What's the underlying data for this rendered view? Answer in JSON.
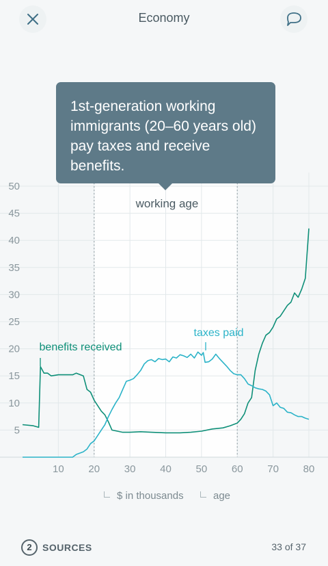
{
  "header": {
    "title": "Economy",
    "close_icon": "close-icon",
    "comment_icon": "speech-bubble-icon"
  },
  "tooltip": {
    "text": "1st-generation working immigrants (20–60 years old) pay taxes and receive benefits."
  },
  "colors": {
    "benefits": "#0e8f78",
    "taxes": "#2bb3c8",
    "tooltip_bg": "#5e7a88",
    "highlight_band": "#ffffff"
  },
  "chart_data": {
    "type": "line",
    "x_ticks": [
      10,
      20,
      30,
      40,
      50,
      60,
      70,
      80
    ],
    "y_ticks": [
      5,
      10,
      15,
      20,
      25,
      30,
      35,
      40,
      45,
      50
    ],
    "xlim": [
      0,
      80
    ],
    "ylim": [
      0,
      52
    ],
    "grid": true,
    "band": {
      "label": "working age",
      "from": 20,
      "to": 60
    },
    "series": [
      {
        "name": "benefits received",
        "color": "#0e8f78",
        "points": [
          [
            0,
            6
          ],
          [
            3,
            5.8
          ],
          [
            4,
            5.6
          ],
          [
            4.5,
            5.5
          ],
          [
            5,
            16.7
          ],
          [
            6,
            15.5
          ],
          [
            7,
            15.5
          ],
          [
            8,
            15.0
          ],
          [
            9,
            15.1
          ],
          [
            10,
            15.2
          ],
          [
            12,
            15.2
          ],
          [
            14,
            15.2
          ],
          [
            15,
            15.5
          ],
          [
            17,
            15.0
          ],
          [
            18,
            12.5
          ],
          [
            19,
            12
          ],
          [
            20,
            10.5
          ],
          [
            22,
            8.5
          ],
          [
            23,
            7.8
          ],
          [
            24,
            6.5
          ],
          [
            25,
            5
          ],
          [
            28,
            4.6
          ],
          [
            30,
            4.6
          ],
          [
            33,
            4.7
          ],
          [
            36,
            4.6
          ],
          [
            40,
            4.5
          ],
          [
            44,
            4.5
          ],
          [
            47,
            4.6
          ],
          [
            50,
            4.8
          ],
          [
            53,
            5.2
          ],
          [
            56,
            5.4
          ],
          [
            58,
            5.8
          ],
          [
            60,
            6.3
          ],
          [
            61,
            7
          ],
          [
            62,
            8
          ],
          [
            63,
            10
          ],
          [
            64,
            11
          ],
          [
            65,
            16
          ],
          [
            66,
            19
          ],
          [
            67,
            21
          ],
          [
            68,
            22.5
          ],
          [
            69,
            23
          ],
          [
            70,
            24
          ],
          [
            71,
            25.5
          ],
          [
            72,
            26
          ],
          [
            73,
            27
          ],
          [
            74,
            28
          ],
          [
            75,
            28.6
          ],
          [
            76,
            30.3
          ],
          [
            77,
            29.5
          ],
          [
            78,
            31
          ],
          [
            79,
            33
          ],
          [
            80,
            42.2
          ]
        ]
      },
      {
        "name": "taxes paid",
        "color": "#2bb3c8",
        "points": [
          [
            0,
            0
          ],
          [
            5,
            0
          ],
          [
            10,
            0
          ],
          [
            14,
            0
          ],
          [
            15,
            0.5
          ],
          [
            17,
            1
          ],
          [
            18,
            1.5
          ],
          [
            19,
            2.5
          ],
          [
            20,
            3
          ],
          [
            21,
            4
          ],
          [
            22,
            5
          ],
          [
            23,
            6
          ],
          [
            24,
            7.5
          ],
          [
            25,
            8.8
          ],
          [
            26,
            10
          ],
          [
            27,
            11
          ],
          [
            28,
            12.5
          ],
          [
            29,
            14
          ],
          [
            30,
            14.2
          ],
          [
            31,
            14.5
          ],
          [
            32,
            15.2
          ],
          [
            33,
            16
          ],
          [
            34,
            17.2
          ],
          [
            35,
            17.8
          ],
          [
            36,
            18
          ],
          [
            37,
            17.6
          ],
          [
            38,
            18.2
          ],
          [
            39,
            18
          ],
          [
            40,
            18.1
          ],
          [
            41,
            17.6
          ],
          [
            42,
            18.5
          ],
          [
            43,
            18.3
          ],
          [
            44,
            18.9
          ],
          [
            45,
            18.7
          ],
          [
            46,
            18.4
          ],
          [
            47,
            19
          ],
          [
            48,
            18.3
          ],
          [
            49,
            19.4
          ],
          [
            50,
            18.8
          ],
          [
            50.5,
            19.3
          ],
          [
            51,
            17.5
          ],
          [
            52,
            17.6
          ],
          [
            53,
            18.1
          ],
          [
            54,
            19
          ],
          [
            55,
            18.2
          ],
          [
            56,
            17.5
          ],
          [
            57,
            16.8
          ],
          [
            58,
            16
          ],
          [
            59,
            15.4
          ],
          [
            60,
            15.2
          ],
          [
            61,
            15.2
          ],
          [
            62,
            14.5
          ],
          [
            63,
            13.5
          ],
          [
            64,
            13.2
          ],
          [
            65,
            12.8
          ],
          [
            66,
            12.6
          ],
          [
            67,
            12.5
          ],
          [
            68,
            12.2
          ],
          [
            69,
            11.5
          ],
          [
            70,
            9.5
          ],
          [
            71,
            10
          ],
          [
            72,
            9.2
          ],
          [
            73,
            9
          ],
          [
            74,
            8.3
          ],
          [
            75,
            8.2
          ],
          [
            76,
            7.8
          ],
          [
            77,
            7.5
          ],
          [
            78,
            7.5
          ],
          [
            79,
            7.2
          ],
          [
            80,
            7
          ]
        ]
      }
    ],
    "annotations": [
      {
        "series": 0,
        "label": "benefits received"
      },
      {
        "series": 1,
        "label": "taxes paid"
      }
    ]
  },
  "legend": {
    "y_label": "$ in thousands",
    "x_label": "age"
  },
  "footer": {
    "sources_count": "2",
    "sources_label": "SOURCES",
    "pager": "33 of 37"
  }
}
